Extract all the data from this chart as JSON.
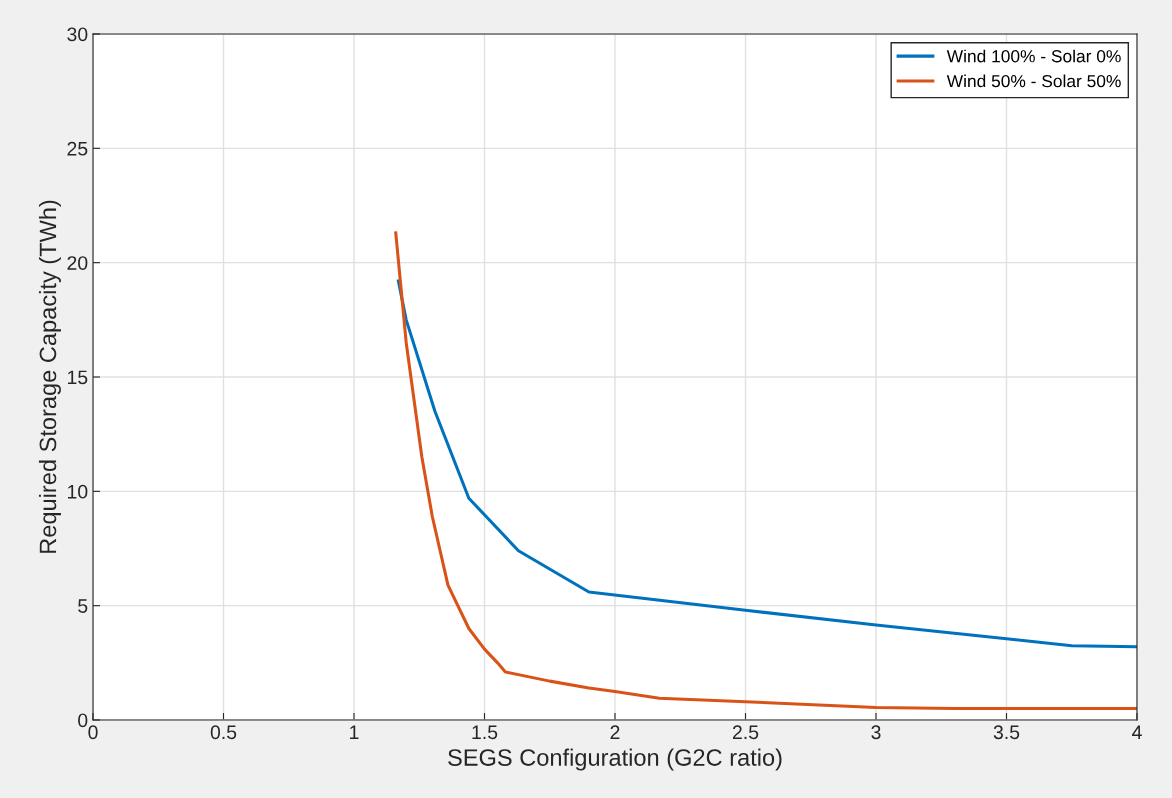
{
  "chart_data": {
    "type": "line",
    "xlabel": "SEGS Configuration (G2C ratio)",
    "ylabel": "Required Storage Capacity (TWh)",
    "xlim": [
      0,
      4
    ],
    "xticks": [
      0,
      0.5,
      1,
      1.5,
      2,
      2.5,
      3,
      3.5,
      4
    ],
    "ylim": [
      0,
      30
    ],
    "yticks": [
      0,
      5,
      10,
      15,
      20,
      25,
      30
    ],
    "grid": true,
    "legend": "top right",
    "series": [
      {
        "name": "Wind 100% - Solar 0%",
        "color": "#0072bd",
        "x": [
          1.17,
          1.2,
          1.31,
          1.44,
          1.63,
          1.9,
          2.5,
          3,
          3.5,
          3.75,
          4
        ],
        "values": [
          19.2,
          17.5,
          13.5,
          9.7,
          7.4,
          5.6,
          4.8,
          4.15,
          3.55,
          3.25,
          3.2
        ]
      },
      {
        "name": "Wind 50% - Solar 50%",
        "color": "#d95319",
        "x": [
          1.16,
          1.2,
          1.26,
          1.3,
          1.36,
          1.44,
          1.5,
          1.55,
          1.58,
          1.75,
          1.9,
          2.0,
          2.17,
          2.5,
          3,
          3.3,
          4
        ],
        "values": [
          21.3,
          16.5,
          11.5,
          8.9,
          5.9,
          4.0,
          3.1,
          2.5,
          2.1,
          1.7,
          1.4,
          1.25,
          0.95,
          0.8,
          0.55,
          0.5,
          0.5
        ]
      }
    ]
  }
}
